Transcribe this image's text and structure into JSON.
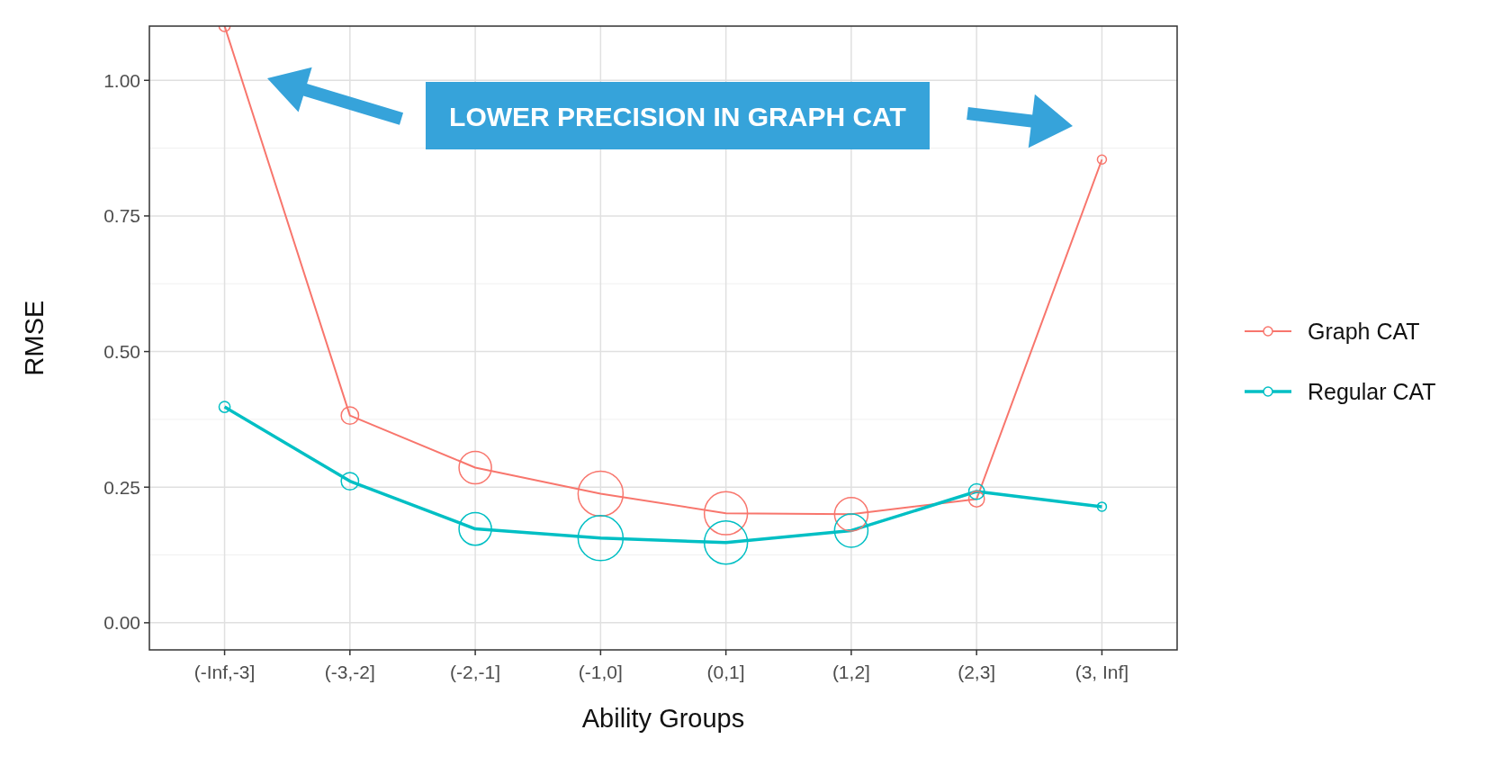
{
  "chart_data": {
    "type": "line",
    "xlabel": "Ability Groups",
    "ylabel": "RMSE",
    "categories": [
      "(-Inf,-3]",
      "(-3,-2]",
      "(-2,-1]",
      "(-1,0]",
      "(0,1]",
      "(1,2]",
      "(2,3]",
      "(3, Inf]"
    ],
    "series": [
      {
        "name": "Graph CAT",
        "marker": "none",
        "color": "#f8766d",
        "values": [
          1.1,
          0.382,
          0.286,
          0.238,
          0.202,
          0.2,
          0.228,
          0.854
        ]
      },
      {
        "name": "Regular CAT",
        "marker": "none",
        "color": "#00bfc4",
        "values": [
          0.398,
          0.261,
          0.173,
          0.156,
          0.148,
          0.17,
          0.242,
          0.214
        ]
      },
      {
        "type": "bubble",
        "marker": "circle",
        "color": "#f8766d",
        "values": [
          1.1,
          0.382,
          0.286,
          0.238,
          0.202,
          0.2,
          0.228,
          0.854
        ],
        "sizes": [
          0.06,
          0.15,
          0.52,
          1,
          0.92,
          0.55,
          0.12,
          0.04
        ]
      },
      {
        "type": "bubble",
        "marker": "circle",
        "color": "#00bfc4",
        "values": [
          0.398,
          0.261,
          0.173,
          0.156,
          0.148,
          0.17,
          0.242,
          0.214
        ],
        "sizes": [
          0.06,
          0.15,
          0.52,
          1,
          0.92,
          0.55,
          0.12,
          0.04
        ]
      }
    ],
    "ylim": [
      -0.05,
      1.1
    ],
    "yticks": [
      {
        "value": 0,
        "label": "0.00"
      },
      {
        "value": 0.25,
        "label": "0.25"
      },
      {
        "value": 0.5,
        "label": "0.50"
      },
      {
        "value": 0.75,
        "label": "0.75"
      },
      {
        "value": 1,
        "label": "1.00"
      }
    ],
    "grid": true,
    "legend": "right",
    "line_style": "solid",
    "annotations": [
      "LOWER PRECISION IN GRAPH CAT"
    ]
  }
}
